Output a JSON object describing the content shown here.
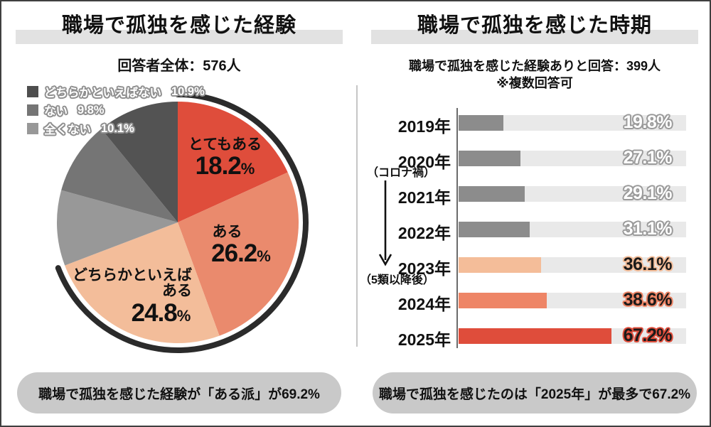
{
  "left": {
    "title": "職場で孤独を感じた経験",
    "subtitle": "回答者全体：576人",
    "note": "職場で孤独を感じた経験が「ある派」が69.2%"
  },
  "right": {
    "title": "職場で孤独を感じた時期",
    "subtitle": "職場で孤独を感じた経験ありと回答：399人",
    "multi_answer_note": "※複数回答可",
    "annotation_covid": "（コロナ禍）",
    "annotation_class5": "（5類以降後）",
    "note": "職場で孤独を感じたのは「2025年」が最多で67.2%"
  },
  "chart_data": [
    {
      "type": "pie",
      "title": "職場で孤独を感じた経験",
      "subtitle": "回答者全体：576人",
      "unit": "%",
      "start": "12-oclock-clockwise",
      "segments": [
        {
          "label": "とてもある",
          "value": 18.2,
          "color": "#df4d3b"
        },
        {
          "label": "ある",
          "value": 26.2,
          "color": "#ea8a6d"
        },
        {
          "label": "どちらかといえばある",
          "label_lines": [
            "どちらかといえば",
            "ある"
          ],
          "value": 24.8,
          "color": "#f3bd9a"
        },
        {
          "label": "全くない",
          "value": 10.1,
          "color": "#989898"
        },
        {
          "label": "ない",
          "value": 9.8,
          "color": "#757575"
        },
        {
          "label": "どちらかといえばない",
          "value": 10.9,
          "color": "#535353"
        }
      ],
      "legend": [
        {
          "label": "どちらかといえばない",
          "value": 10.9,
          "color": "#4e4e4e"
        },
        {
          "label": "ない",
          "value": 9.8,
          "color": "#757575"
        },
        {
          "label": "全くない",
          "value": 10.1,
          "color": "#989898"
        }
      ],
      "legend_text_color": "#ffffff",
      "legend_outline_color": "#8f8f8f",
      "highlight_arc": {
        "percent": 69.2,
        "color": "#2b2b2b",
        "label": "ある派"
      }
    },
    {
      "type": "bar",
      "orientation": "horizontal",
      "title": "職場で孤独を感じた時期",
      "subtitle": "職場で孤独を感じた経験ありと回答：399人",
      "unit": "%",
      "xlim": [
        0,
        100
      ],
      "track_color": "#e9e9e9",
      "categories": [
        "2019年",
        "2020年",
        "2021年",
        "2022年",
        "2023年",
        "2024年",
        "2025年"
      ],
      "bars": [
        {
          "year": "2019年",
          "value": 19.8,
          "color": "#8c8c8c",
          "value_color": "#ffffff",
          "value_outline": "#9a9a9a"
        },
        {
          "year": "2020年",
          "value": 27.1,
          "color": "#8c8c8c",
          "value_color": "#ffffff",
          "value_outline": "#9a9a9a"
        },
        {
          "year": "2021年",
          "value": 29.1,
          "color": "#8c8c8c",
          "value_color": "#ffffff",
          "value_outline": "#9a9a9a"
        },
        {
          "year": "2022年",
          "value": 31.1,
          "color": "#8c8c8c",
          "value_color": "#ffffff",
          "value_outline": "#9a9a9a"
        },
        {
          "year": "2023年",
          "value": 36.1,
          "color": "#f4bd99",
          "value_color": "#1a1a1a",
          "value_outline": "#f4bd99"
        },
        {
          "year": "2024年",
          "value": 38.6,
          "color": "#ee8566",
          "value_color": "#1a1a1a",
          "value_outline": "#ee8566"
        },
        {
          "year": "2025年",
          "value": 67.2,
          "color": "#df4d3b",
          "value_color": "#1a1a1a",
          "value_outline": "#df4d3b"
        }
      ]
    }
  ]
}
